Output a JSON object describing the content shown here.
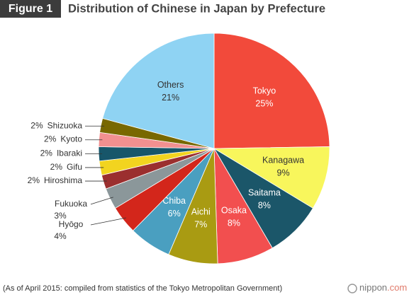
{
  "chart_data": {
    "type": "pie",
    "figure_label": "Figure 1",
    "title": "Distribution of Chinese in Japan by Prefecture",
    "categories": [
      "Tokyo",
      "Kanagawa",
      "Saitama",
      "Osaka",
      "Aichi",
      "Chiba",
      "Hyōgo",
      "Fukuoka",
      "Hiroshima",
      "Gifu",
      "Ibaraki",
      "Kyoto",
      "Shizuoka",
      "Others"
    ],
    "values": [
      25,
      9,
      8,
      8,
      7,
      6,
      4,
      3,
      2,
      2,
      2,
      2,
      2,
      21
    ],
    "value_labels": [
      "25%",
      "9%",
      "8%",
      "8%",
      "7%",
      "6%",
      "4%",
      "3%",
      "2%",
      "2%",
      "2%",
      "2%",
      "2%",
      "21%"
    ],
    "colors": [
      "#f24a3b",
      "#f8f65c",
      "#1b5669",
      "#f24f4f",
      "#a99b12",
      "#4a9fc0",
      "#d3261b",
      "#8b979a",
      "#9b2f2f",
      "#f2d41f",
      "#17566a",
      "#f29090",
      "#786800",
      "#8fd3f3"
    ],
    "note": "(As of April 2015: compiled from statistics of the Tokyo Metropolitan Government)",
    "logo": {
      "name": "nippon",
      "suffix": ".com"
    }
  }
}
